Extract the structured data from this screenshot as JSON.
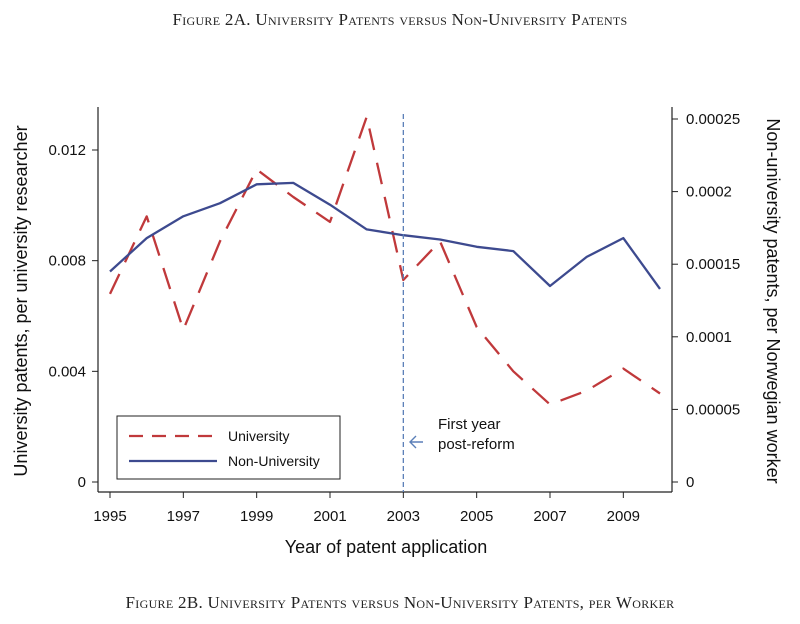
{
  "captions": {
    "top": "Figure 2A. University Patents versus Non-University Patents",
    "bottom": "Figure 2B. University Patents versus Non-University Patents, per Worker"
  },
  "chart_data": {
    "type": "line",
    "title": "",
    "xlabel": "Year of patent application",
    "ylabel_left": "University patents, per university researcher",
    "ylabel_right": "Non-university patents, per Norwegian worker",
    "xlim": [
      1995,
      2010
    ],
    "xticks": [
      "1995",
      "1997",
      "1999",
      "2001",
      "2003",
      "2005",
      "2007",
      "2009"
    ],
    "xtick_values": [
      1995,
      1997,
      1999,
      2001,
      2003,
      2005,
      2007,
      2009
    ],
    "ylim_left": [
      0,
      0.0133
    ],
    "yticks_left": [
      "0",
      "0.004",
      "0.008",
      "0.012"
    ],
    "ytick_values_left": [
      0,
      0.004,
      0.008,
      0.012
    ],
    "ylim_right": [
      0,
      0.00025
    ],
    "yticks_right": [
      "0",
      "0.00005",
      "0.0001",
      "0.00015",
      "0.0002",
      "0.00025"
    ],
    "ytick_values_right": [
      0,
      5e-05,
      0.0001,
      0.00015,
      0.0002,
      0.00025
    ],
    "x": [
      1995,
      1996,
      1997,
      1998,
      1999,
      2000,
      2001,
      2002,
      2003,
      2004,
      2005,
      2006,
      2007,
      2008,
      2009,
      2010
    ],
    "series": [
      {
        "name": "University",
        "axis": "left",
        "style": "dashed",
        "color": "#c0393b",
        "values": [
          0.0068,
          0.0096,
          0.0055,
          0.0087,
          0.0113,
          0.0103,
          0.0094,
          0.0132,
          0.0073,
          0.0087,
          0.0056,
          0.004,
          0.0028,
          0.0033,
          0.0041,
          0.0032
        ]
      },
      {
        "name": "Non-University",
        "axis": "right",
        "style": "solid",
        "color": "#3d4a8f",
        "values": [
          0.000145,
          0.000168,
          0.000183,
          0.000192,
          0.000205,
          0.000206,
          0.000191,
          0.000174,
          0.00017,
          0.000167,
          0.000162,
          0.000159,
          0.000135,
          0.000155,
          0.000168,
          0.000133
        ]
      }
    ],
    "vline": {
      "x": 2003,
      "color": "#5b7fb8",
      "style": "dashed"
    },
    "annotation": {
      "line1": "First year",
      "line2": "post-reform"
    },
    "legend": {
      "placement": "bottom-left"
    },
    "grid": false
  }
}
